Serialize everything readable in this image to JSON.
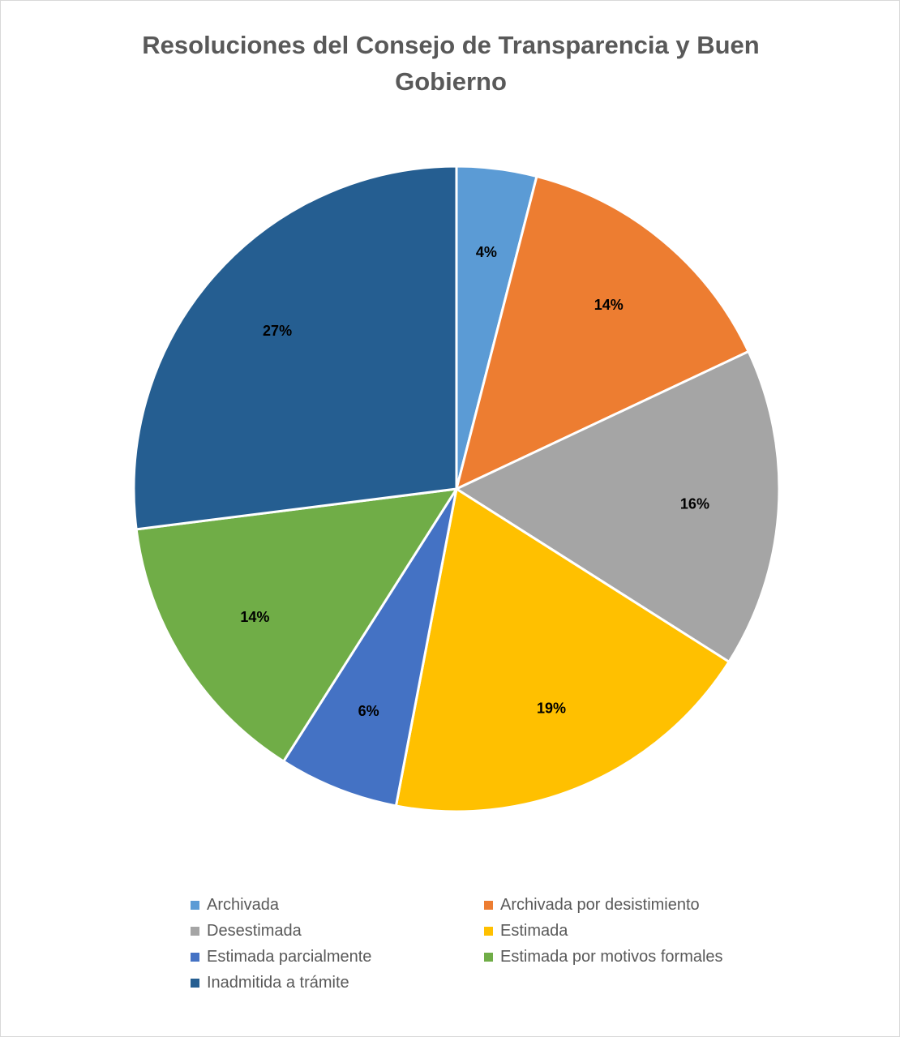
{
  "chart_data": {
    "type": "pie",
    "title": "Resoluciones del Consejo de Transparencia y Buen Gobierno",
    "categories": [
      "Archivada",
      "Archivada por desistimiento",
      "Desestimada",
      "Estimada",
      "Estimada parcialmente",
      "Estimada por motivos formales",
      "Inadmitida a trámite"
    ],
    "values": [
      4,
      14,
      16,
      19,
      6,
      14,
      27
    ],
    "labels": [
      "4%",
      "14%",
      "16%",
      "19%",
      "6%",
      "14%",
      "27%"
    ],
    "colors": [
      "#5b9bd5",
      "#ed7d31",
      "#a5a5a5",
      "#ffc000",
      "#4472c4",
      "#70ad47",
      "#255e91"
    ],
    "legend_position": "bottom",
    "data_labels": "inside"
  }
}
